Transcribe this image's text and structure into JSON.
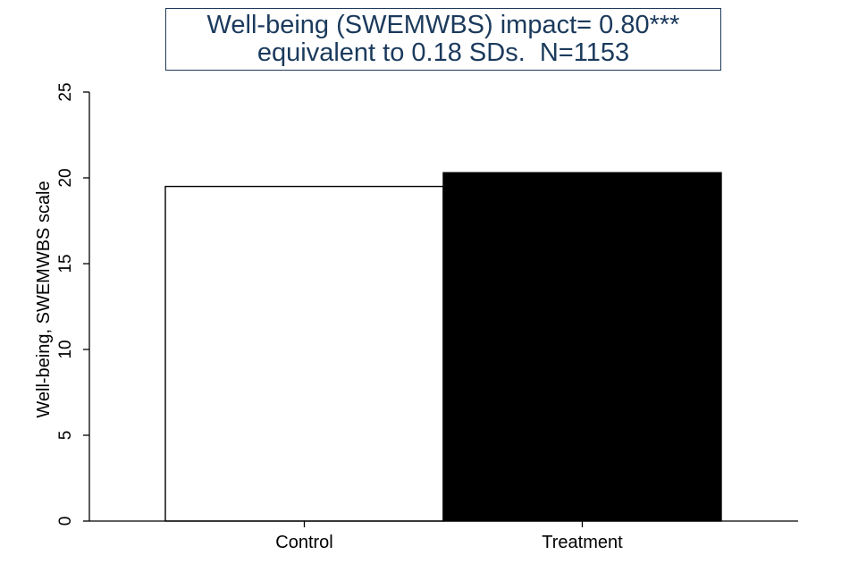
{
  "chart_data": {
    "type": "bar",
    "title_lines": [
      "Well-being (SWEMWBS) impact= 0.80***",
      "equivalent to 0.18 SDs.  N=1153"
    ],
    "categories": [
      "Control",
      "Treatment"
    ],
    "values": [
      19.5,
      20.3
    ],
    "ylabel": "Well-being, SWEMWBS scale",
    "xlabel": "",
    "ylim": [
      0,
      26
    ],
    "yticks": [
      0,
      5,
      10,
      15,
      20,
      25
    ],
    "bar_colors": [
      "#ffffff",
      "#000000"
    ],
    "bar_edge": "#000000",
    "title_color": "#1b3a5c",
    "grid": false,
    "legend": "none"
  }
}
